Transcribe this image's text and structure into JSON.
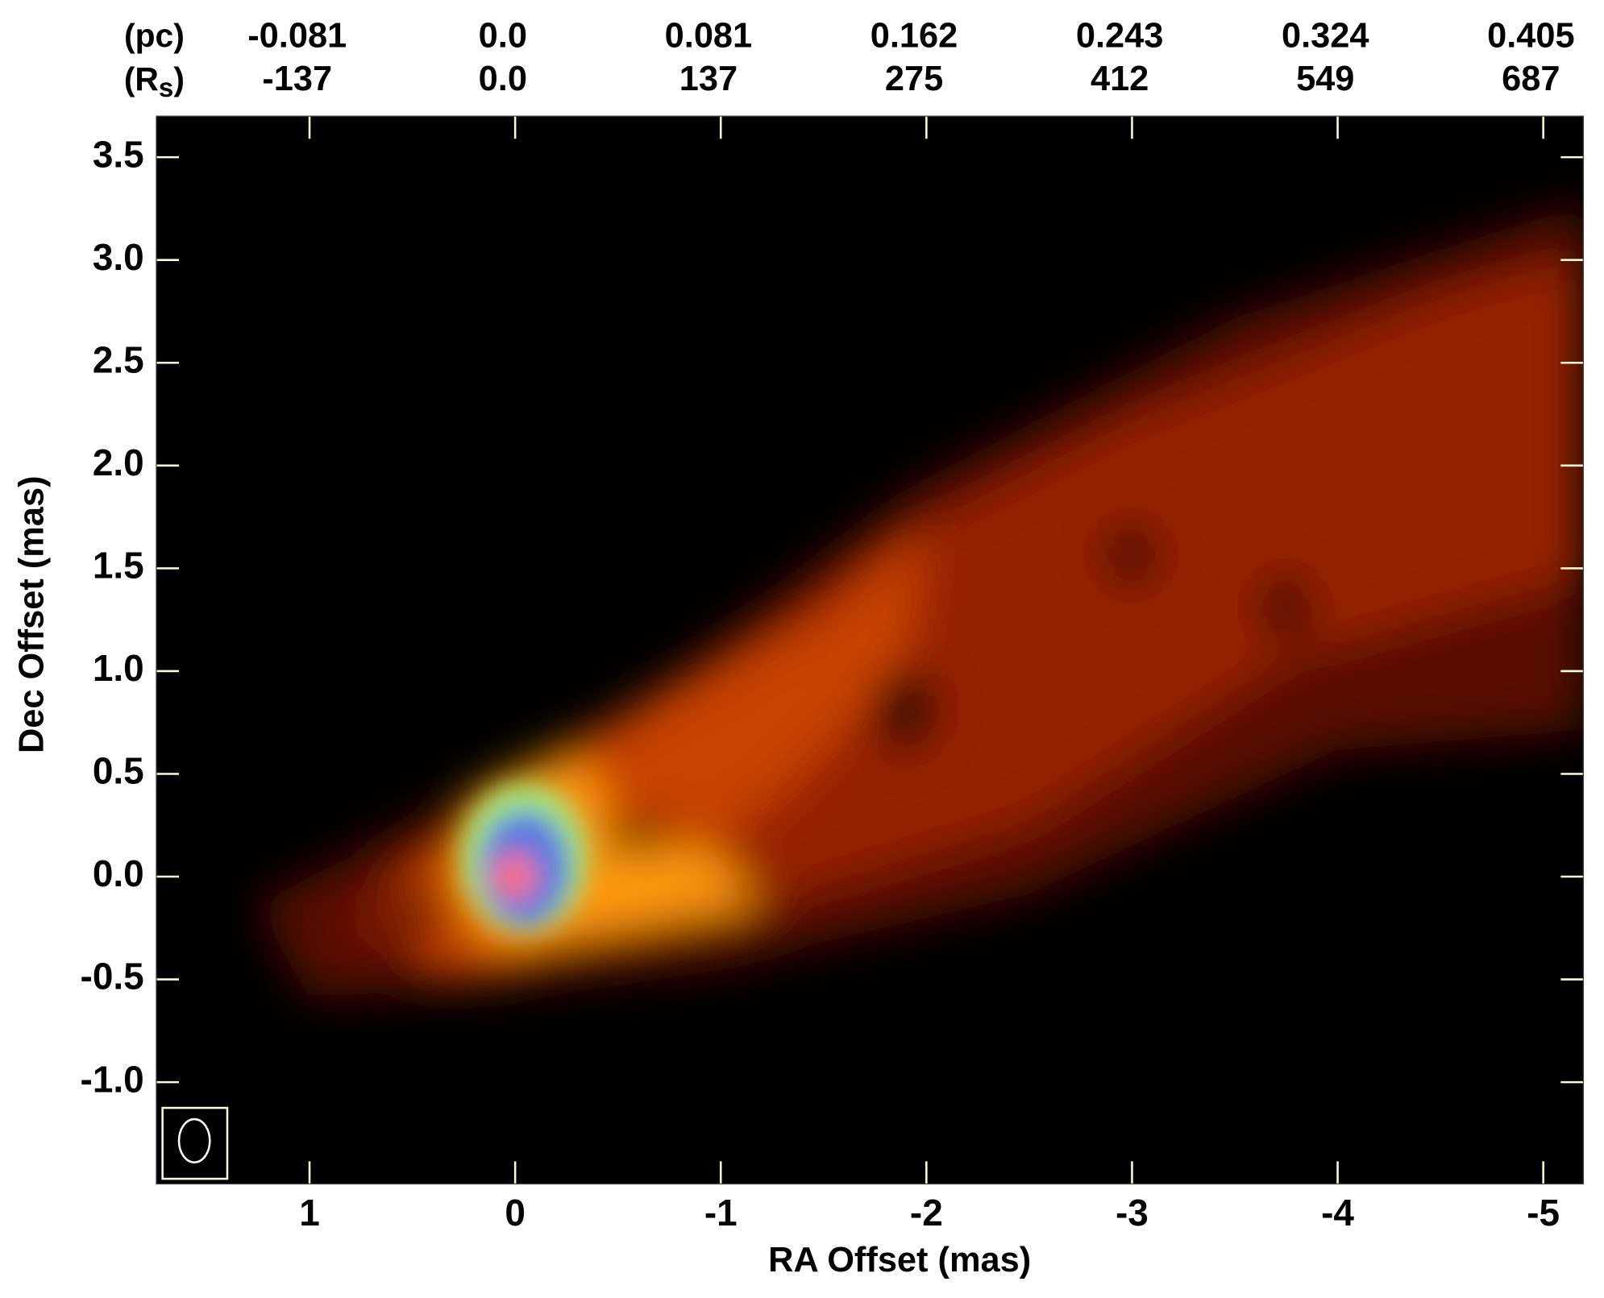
{
  "chart_data": {
    "type": "image",
    "x_label": "RA Offset (mas)",
    "y_label": "Dec Offset (mas)",
    "xlim": [
      1.745,
      -5.195
    ],
    "ylim": [
      -1.495,
      3.7
    ],
    "xticks": [
      1,
      0,
      -1,
      -2,
      -3,
      -4,
      -5
    ],
    "yticks": [
      3.5,
      {
        "value": 3,
        "label": "3.0"
      },
      2.5,
      {
        "value": 2,
        "label": "2.0"
      },
      1.5,
      {
        "value": 1,
        "label": "1.0"
      },
      0.5,
      {
        "value": 0,
        "label": "0.0"
      },
      -0.5,
      {
        "value": -1,
        "label": "-1.0"
      }
    ],
    "top_axis_pc_label": "(pc)",
    "top_axis_rs_label": {
      "text": "(R",
      "sub": "s",
      "close": ")"
    },
    "top_pc_ticks": [
      {
        "value": 1,
        "label": "-0.081"
      },
      {
        "value": 0,
        "label": "0.0"
      },
      {
        "value": -1,
        "label": "0.081"
      },
      {
        "value": -2,
        "label": "0.162"
      },
      {
        "value": -3,
        "label": "0.243"
      },
      {
        "value": -4,
        "label": "0.324"
      },
      {
        "value": -5,
        "label": "0.405"
      }
    ],
    "top_rs_ticks": [
      {
        "value": 1,
        "label": "-137"
      },
      {
        "value": 0,
        "label": "0.0"
      },
      {
        "value": -1,
        "label": "137"
      },
      {
        "value": -2,
        "label": "275"
      },
      {
        "value": -3,
        "label": "412"
      },
      {
        "value": -4,
        "label": "549"
      },
      {
        "value": -5,
        "label": "687"
      }
    ]
  }
}
